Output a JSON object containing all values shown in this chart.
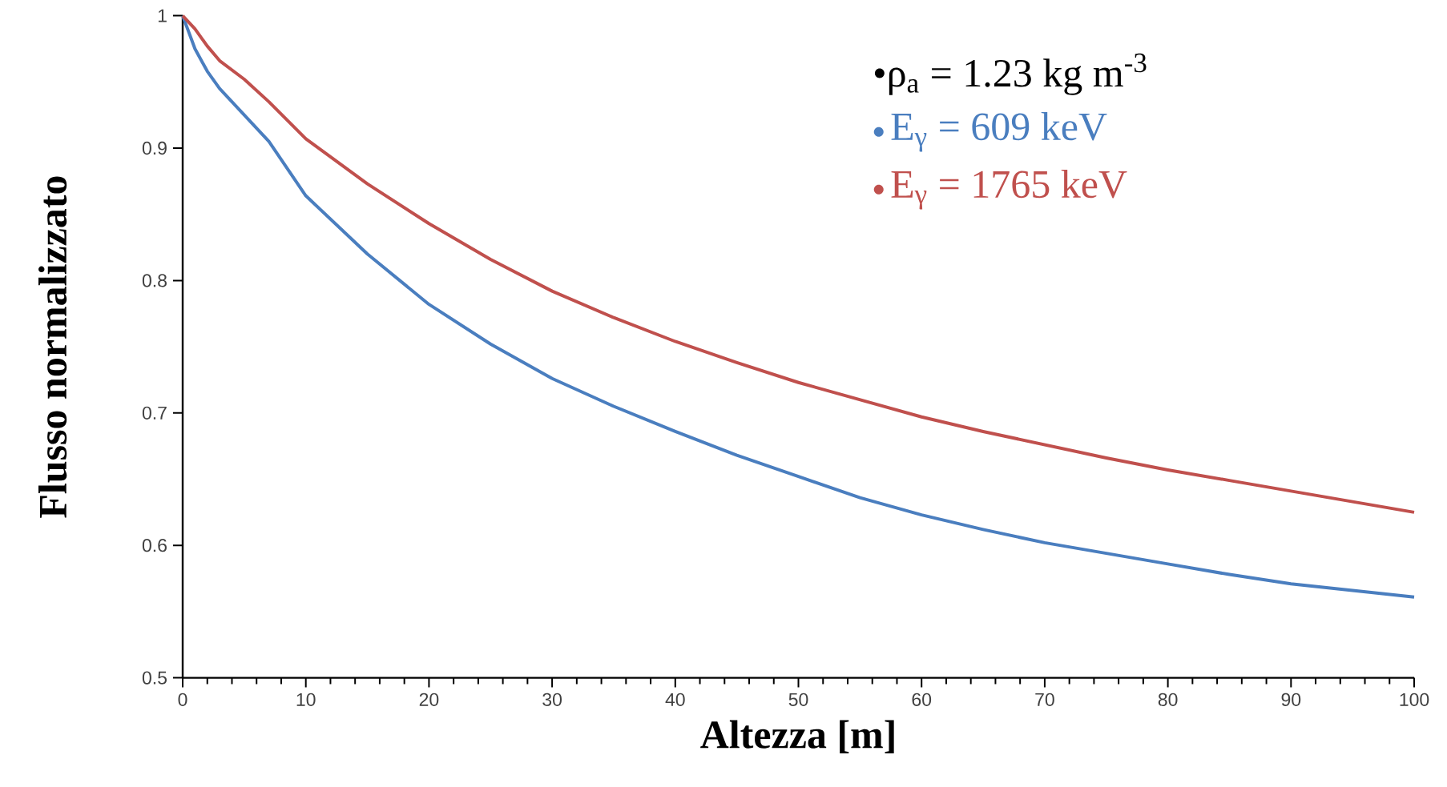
{
  "chart_data": {
    "type": "line",
    "xlabel": "Altezza [m]",
    "ylabel": "Flusso normalizzato",
    "xlim": [
      0,
      100
    ],
    "ylim": [
      0.5,
      1
    ],
    "xticks": [
      0,
      10,
      20,
      30,
      40,
      50,
      60,
      70,
      80,
      90,
      100
    ],
    "yticks": [
      0.5,
      0.6,
      0.7,
      0.8,
      0.9,
      1
    ],
    "grid": false,
    "legend": "top right",
    "annotations": [
      "•ρ$_{a}$ = 1.23 kg m$^{-3}$"
    ],
    "series": [
      {
        "name": "E$_{γ}$ = 609 keV",
        "color": "#4a7ebf",
        "x": [
          0,
          1,
          2,
          3,
          5,
          7,
          10,
          15,
          20,
          25,
          30,
          35,
          40,
          45,
          50,
          55,
          60,
          65,
          70,
          75,
          80,
          85,
          90,
          95,
          100
        ],
        "values": [
          1,
          0.975,
          0.958,
          0.945,
          0.925,
          0.905,
          0.864,
          0.82,
          0.782,
          0.752,
          0.726,
          0.705,
          0.686,
          0.668,
          0.652,
          0.636,
          0.623,
          0.612,
          0.602,
          0.594,
          0.586,
          0.578,
          0.571,
          0.566,
          0.561
        ]
      },
      {
        "name": "E$_{γ}$ = 1765 keV",
        "color": "#c0504d",
        "x": [
          0,
          1,
          2,
          3,
          5,
          7,
          10,
          15,
          20,
          25,
          30,
          35,
          40,
          45,
          50,
          55,
          60,
          65,
          70,
          75,
          80,
          85,
          90,
          95,
          100
        ],
        "values": [
          1,
          0.99,
          0.977,
          0.966,
          0.952,
          0.935,
          0.907,
          0.873,
          0.843,
          0.816,
          0.792,
          0.772,
          0.754,
          0.738,
          0.723,
          0.71,
          0.697,
          0.686,
          0.676,
          0.666,
          0.657,
          0.649,
          0.641,
          0.633,
          0.625
        ]
      }
    ]
  }
}
